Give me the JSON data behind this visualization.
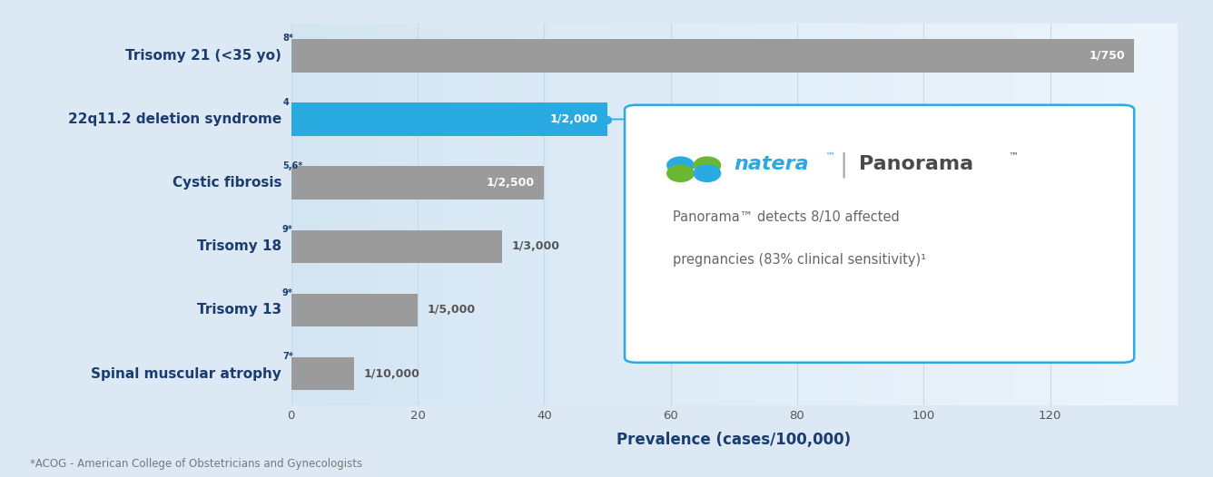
{
  "categories": [
    "Spinal muscular atrophy$^{7*}$",
    "Trisomy 13$^{9*}$",
    "Trisomy 18$^{9*}$",
    "Cystic fibrosis$^{5,6*}$",
    "22q11.2 deletion syndrome$^{4}$",
    "Trisomy 21 (<35 yo)$^{8*}$"
  ],
  "categories_plain": [
    "Spinal muscular atrophy",
    "Trisomy 13",
    "Trisomy 18",
    "Cystic fibrosis",
    "22q11.2 deletion syndrome",
    "Trisomy 21 (<35 yo)"
  ],
  "categories_sup": [
    "7*",
    "9*",
    "9*",
    "5,6*",
    "4",
    "8*"
  ],
  "values": [
    10,
    20,
    33.33,
    40,
    50,
    133.33
  ],
  "bar_labels": [
    "1/10,000",
    "1/5,000",
    "1/3,000",
    "1/2,500",
    "1/2,000",
    "1/750"
  ],
  "bar_colors": [
    "#9b9b9b",
    "#9b9b9b",
    "#9b9b9b",
    "#9b9b9b",
    "#29abe2",
    "#9b9b9b"
  ],
  "label_in_bar": [
    false,
    false,
    false,
    true,
    true,
    true
  ],
  "label_color_in": "#ffffff",
  "label_color_out": "#555555",
  "bg_color": "#dce9f5",
  "xlabel": "Prevalence (cases/100,000)",
  "xlim": [
    0,
    140
  ],
  "xticks": [
    0,
    20,
    40,
    60,
    80,
    100,
    120
  ],
  "grid_color": "#c5d9e8",
  "bar_height": 0.52,
  "footnote": "*ACOG - American College of Obstetricians and Gynecologists",
  "box_line1": "Panorama™ detects 8/10 affected",
  "box_line2": "pregnancies (83% clinical sensitivity)¹",
  "ylabel_color": "#1a3c6e",
  "xlabel_color": "#1a3c6e",
  "cat_fontsize": 11,
  "bar_label_fontsize": 9,
  "footnote_fontsize": 8.5,
  "dot_color": "#29abe2",
  "natera_blue": "#29abe2",
  "natera_green": "#6ab731",
  "box_edge_color": "#29abe2",
  "box_text_color": "#666666",
  "natera_text_color": "#29abe2",
  "panorama_text_color": "#4a4a4a"
}
